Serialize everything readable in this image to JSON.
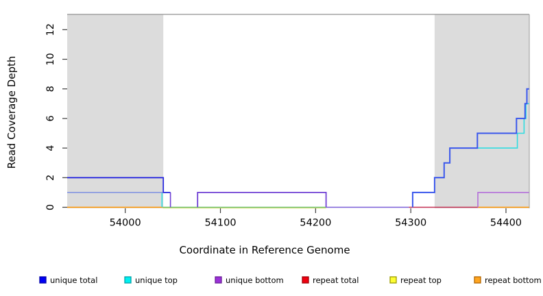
{
  "figure": {
    "x_axis_title": "Coordinate in Reference Genome",
    "y_axis_title": "Read Coverage Depth"
  },
  "chart_data": {
    "type": "line",
    "subtype": "step-coverage",
    "title": "",
    "xlabel": "Coordinate in Reference Genome",
    "ylabel": "Read Coverage Depth",
    "x_ticks": [
      54000,
      54100,
      54200,
      54300,
      54400
    ],
    "y_ticks": [
      0,
      2,
      4,
      6,
      8,
      10,
      12
    ],
    "xlim": [
      53939,
      54424.5
    ],
    "ylim": [
      0,
      13
    ],
    "grid": false,
    "legend_position": "bottom",
    "shaded_regions": [
      {
        "name": "repeat-region-left",
        "from": 53939,
        "to": 54040
      },
      {
        "name": "repeat-region-right",
        "from": 54325,
        "to": 54424.5
      }
    ],
    "series": [
      {
        "name": "unique total",
        "color": "#2a35e0",
        "steps": [
          [
            53939,
            2
          ],
          [
            54039,
            1
          ],
          [
            54048,
            0
          ],
          [
            54076,
            1
          ],
          [
            54211,
            0
          ],
          [
            54302,
            1
          ],
          [
            54325,
            2
          ],
          [
            54335,
            3
          ],
          [
            54341,
            4
          ],
          [
            54370,
            5
          ],
          [
            54411,
            6
          ],
          [
            54420,
            7
          ],
          [
            54422,
            8
          ],
          [
            54424.5,
            8
          ]
        ]
      },
      {
        "name": "unique top",
        "color": "#00e5e5",
        "steps": [
          [
            53939,
            1
          ],
          [
            54039,
            0
          ],
          [
            54302,
            1
          ],
          [
            54325,
            2
          ],
          [
            54335,
            3
          ],
          [
            54341,
            4
          ],
          [
            54412,
            5
          ],
          [
            54419,
            6
          ],
          [
            54421,
            7
          ],
          [
            54424.5,
            7
          ]
        ]
      },
      {
        "name": "unique bottom",
        "color": "#9b30d0",
        "steps": [
          [
            53939,
            1
          ],
          [
            54048,
            0
          ],
          [
            54076,
            1
          ],
          [
            54211,
            0
          ],
          [
            54370.5,
            1
          ],
          [
            54424.5,
            1
          ]
        ]
      },
      {
        "name": "repeat total",
        "color": "#e00000",
        "steps": [
          [
            53939,
            0
          ],
          [
            54424.5,
            0
          ]
        ]
      },
      {
        "name": "repeat top",
        "color": "#f5f500",
        "steps": [
          [
            53939,
            0
          ],
          [
            54424.5,
            0
          ]
        ]
      },
      {
        "name": "repeat bottom",
        "color": "#ff9500",
        "steps": [
          [
            53939,
            0
          ],
          [
            54424.5,
            0
          ]
        ]
      }
    ]
  },
  "visual": {
    "shade_color": "#dcdcdc",
    "border_color": "#8f8f8f",
    "tick_color": "#3c3c3c",
    "text_color": "#000000",
    "zero_line_segments": [
      {
        "from": 53939,
        "to": 54039.5,
        "color": "#ff9500",
        "dy": 0
      },
      {
        "from": 54039.5,
        "to": 54211,
        "color": "#e6e67a",
        "dy": 1
      },
      {
        "from": 54039.5,
        "to": 54211,
        "color": "#6fbf6f",
        "dy": 0
      },
      {
        "from": 54211,
        "to": 54298,
        "color": "#7a5fd8",
        "dy": 0
      },
      {
        "from": 54298,
        "to": 54370.5,
        "color": "#c23052",
        "dy": 0
      },
      {
        "from": 54370.5,
        "to": 54424.3,
        "color": "#ff9500",
        "dy": 0
      }
    ],
    "line_segments": [
      {
        "name": "unique-top-left-drop",
        "color": "#30dce0",
        "w": 1.6,
        "pts": [
          [
            54038.6,
            1
          ],
          [
            54038.6,
            0
          ]
        ]
      },
      {
        "name": "unique-overlap-left",
        "color": "#8a9ae0",
        "w": 1.8,
        "pts": [
          [
            53939,
            1
          ],
          [
            54047.5,
            1
          ]
        ]
      },
      {
        "name": "unique-total-left",
        "color": "#2a2ade",
        "w": 1.8,
        "pts": [
          [
            53939,
            2
          ],
          [
            54040,
            2
          ],
          [
            54040,
            1
          ],
          [
            54047.5,
            1
          ]
        ]
      },
      {
        "name": "unique-bottom-left-drop",
        "color": "#6f3fd4",
        "w": 1.6,
        "pts": [
          [
            54047.5,
            1
          ],
          [
            54047.5,
            0
          ]
        ]
      },
      {
        "name": "unique-bottom-mid",
        "color": "#6f3fd4",
        "w": 1.8,
        "pts": [
          [
            54076,
            0
          ],
          [
            54076,
            1
          ],
          [
            54211,
            1
          ],
          [
            54211,
            0
          ]
        ]
      },
      {
        "name": "unique-top-right",
        "color": "#30dce0",
        "w": 1.6,
        "pts": [
          [
            54370,
            4
          ],
          [
            54412,
            4
          ],
          [
            54412,
            5
          ],
          [
            54419,
            5
          ],
          [
            54419,
            6
          ],
          [
            54421,
            6
          ],
          [
            54421,
            7
          ],
          [
            54424.3,
            7
          ]
        ]
      },
      {
        "name": "unique-total-right",
        "color": "#3a57ec",
        "w": 2.0,
        "pts": [
          [
            54302,
            0
          ],
          [
            54302,
            1
          ],
          [
            54325,
            1
          ],
          [
            54325,
            2
          ],
          [
            54335,
            2
          ],
          [
            54335,
            3
          ],
          [
            54341,
            3
          ],
          [
            54341,
            4
          ],
          [
            54370,
            4
          ],
          [
            54370,
            5
          ],
          [
            54411,
            5
          ],
          [
            54411,
            6
          ],
          [
            54420,
            6
          ],
          [
            54420,
            7
          ],
          [
            54422,
            7
          ],
          [
            54422,
            8
          ],
          [
            54424.3,
            8
          ]
        ]
      },
      {
        "name": "unique-bottom-right",
        "color": "#b36fd9",
        "w": 1.6,
        "pts": [
          [
            54370.5,
            0
          ],
          [
            54370.5,
            1
          ],
          [
            54424.3,
            1
          ]
        ]
      }
    ]
  },
  "legend": {
    "items": [
      {
        "label": "unique total",
        "fill": "#0000f5",
        "border": "#0000a8"
      },
      {
        "label": "unique top",
        "fill": "#00f0f0",
        "border": "#00a0a8"
      },
      {
        "label": "unique bottom",
        "fill": "#9b30d8",
        "border": "#6a1f96"
      },
      {
        "label": "repeat total",
        "fill": "#f00010",
        "border": "#9e0008"
      },
      {
        "label": "repeat top",
        "fill": "#fdfd33",
        "border": "#9a9a00"
      },
      {
        "label": "repeat bottom",
        "fill": "#ffa520",
        "border": "#b06400"
      }
    ]
  }
}
